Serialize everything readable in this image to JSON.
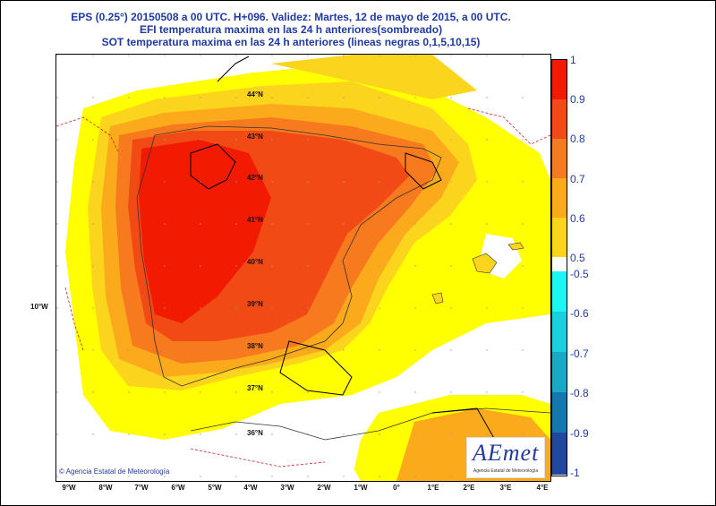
{
  "header": {
    "line1": "EPS (0.25°) 20150508 a 00 UTC.  H+096. Validez: Martes, 12 de mayo de 2015,  a  00 UTC.",
    "line2": "EFI temperatura maxima en las 24 h anteriores(sombreado)",
    "line3": "SOT temperatura maxima en las 24 h anteriores (lineas negras 0,1,5,10,15)"
  },
  "map": {
    "lat_labels": [
      "44°N",
      "43°N",
      "42°N",
      "41°N",
      "40°N",
      "39°N",
      "38°N",
      "37°N",
      "36°N"
    ],
    "lon_labels": [
      "9°W",
      "8°W",
      "7°W",
      "6°W",
      "5°W",
      "4°W",
      "3°W",
      "2°W",
      "1°W",
      "0°",
      "1°E",
      "2°E",
      "3°E",
      "4°E"
    ],
    "side_label": "10°W",
    "credit": "© Agencia Estatal de Meteorología"
  },
  "colorbar": {
    "labels": [
      "1",
      "0.9",
      "0.8",
      "0.7",
      "0.6",
      "0.5",
      "-0.5",
      "-0.6",
      "-0.7",
      "-0.8",
      "-0.9",
      "-1"
    ],
    "colors": [
      "#f21a00",
      "#f24a14",
      "#f77a1e",
      "#fbaa1c",
      "#fbd41e",
      "#ffff00",
      "#1df5f5",
      "#1bcfe0",
      "#18a8c8",
      "#1478b0",
      "#2048a0",
      "#1c1c78"
    ]
  },
  "logo": {
    "text": "AEmet",
    "subtitle": "Agencia Estatal de Meteorología"
  }
}
